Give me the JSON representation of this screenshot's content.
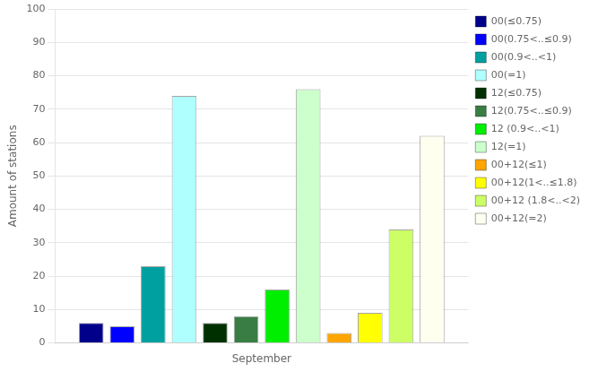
{
  "chart_data": {
    "type": "bar",
    "categories": [
      "September"
    ],
    "series": [
      {
        "name": "00(≤0.75)",
        "color": "#00008B",
        "values": [
          6
        ]
      },
      {
        "name": "00(0.75<..≤0.9)",
        "color": "#0000FF",
        "values": [
          5
        ]
      },
      {
        "name": "00(0.9<..<1)",
        "color": "#00A0A0",
        "values": [
          23
        ]
      },
      {
        "name": "00(=1)",
        "color": "#B0FFFF",
        "values": [
          74
        ]
      },
      {
        "name": "12(≤0.75)",
        "color": "#003000",
        "values": [
          6
        ]
      },
      {
        "name": "12(0.75<..≤0.9)",
        "color": "#3A7D44",
        "values": [
          8
        ]
      },
      {
        "name": "12 (0.9<..<1)",
        "color": "#00EE00",
        "values": [
          16
        ]
      },
      {
        "name": "12(=1)",
        "color": "#CCFFCC",
        "values": [
          76
        ]
      },
      {
        "name": "00+12(≤1)",
        "color": "#FFA500",
        "values": [
          3
        ]
      },
      {
        "name": "00+12(1<..≤1.8)",
        "color": "#FFFF00",
        "values": [
          9
        ]
      },
      {
        "name": "00+12 (1.8<..<2)",
        "color": "#CCFF66",
        "values": [
          34
        ]
      },
      {
        "name": "00+12(=2)",
        "color": "#FFFFF0",
        "values": [
          62
        ]
      }
    ],
    "ylabel": "Amount of stations",
    "ylim": [
      0,
      100
    ],
    "yticks": [
      0,
      10,
      20,
      30,
      40,
      50,
      60,
      70,
      80,
      90,
      100
    ],
    "grid": true,
    "legend": "right"
  }
}
